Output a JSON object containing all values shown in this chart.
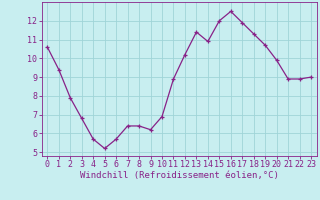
{
  "x": [
    0,
    1,
    2,
    3,
    4,
    5,
    6,
    7,
    8,
    9,
    10,
    11,
    12,
    13,
    14,
    15,
    16,
    17,
    18,
    19,
    20,
    21,
    22,
    23
  ],
  "y": [
    10.6,
    9.4,
    7.9,
    6.8,
    5.7,
    5.2,
    5.7,
    6.4,
    6.4,
    6.2,
    6.9,
    8.9,
    10.2,
    11.4,
    10.9,
    12.0,
    12.5,
    11.9,
    11.3,
    10.7,
    9.9,
    8.9,
    8.9,
    9.0
  ],
  "line_color": "#882288",
  "marker": "+",
  "bg_color": "#c8eef0",
  "grid_color": "#a0d4d8",
  "xlabel": "Windchill (Refroidissement éolien,°C)",
  "xlim_min": -0.5,
  "xlim_max": 23.5,
  "ylim_min": 4.8,
  "ylim_max": 13.0,
  "yticks": [
    5,
    6,
    7,
    8,
    9,
    10,
    11,
    12
  ],
  "xticks": [
    0,
    1,
    2,
    3,
    4,
    5,
    6,
    7,
    8,
    9,
    10,
    11,
    12,
    13,
    14,
    15,
    16,
    17,
    18,
    19,
    20,
    21,
    22,
    23
  ],
  "axis_color": "#882288",
  "label_fontsize": 6.5,
  "tick_fontsize": 6.0,
  "line_width": 0.9,
  "marker_size": 3.5,
  "marker_edge_width": 0.9
}
